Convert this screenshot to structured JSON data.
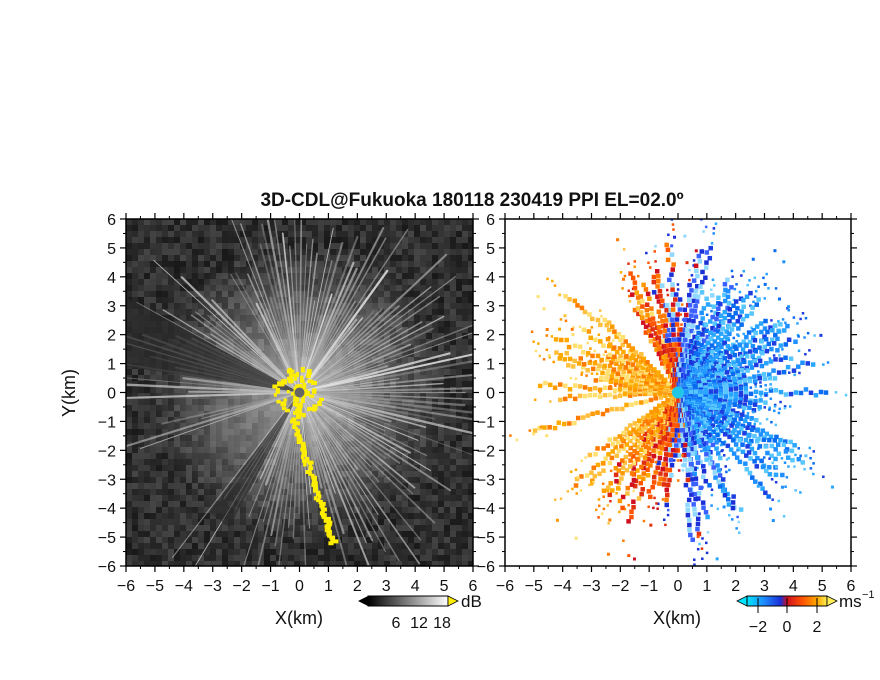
{
  "title": "3D-CDL@Fukuoka 180118 230419 PPI EL=02.0º",
  "colors": {
    "background_noise": "#2b2b2b",
    "sector_gray": "#e6e6e6",
    "yellow": "#ffee00",
    "radar_site": "#666666",
    "radar_site_right": "#22c7e8"
  },
  "chart_data": [
    {
      "type": "heatmap",
      "panel": "left",
      "xlabel": "X(km)",
      "ylabel": "Y(km)",
      "xlim": [
        -6,
        6
      ],
      "ylim": [
        -6,
        6
      ],
      "xticks": [
        -6,
        -5,
        -4,
        -3,
        -2,
        -1,
        0,
        1,
        2,
        3,
        4,
        5,
        6
      ],
      "yticks": [
        -6,
        -5,
        -4,
        -3,
        -2,
        -1,
        0,
        1,
        2,
        3,
        4,
        5,
        6
      ],
      "grid": false,
      "colorbar": {
        "unit": "dB",
        "ticks": [
          "6",
          "12",
          "18"
        ]
      }
    },
    {
      "type": "heatmap",
      "panel": "right",
      "xlabel": "X(km)",
      "ylabel": "",
      "xlim": [
        -6,
        6
      ],
      "ylim": [
        -6,
        6
      ],
      "xticks": [
        -6,
        -5,
        -4,
        -3,
        -2,
        -1,
        0,
        1,
        2,
        3,
        4,
        5,
        6
      ],
      "yticks": [
        -6,
        -5,
        -4,
        -3,
        -2,
        -1,
        0,
        1,
        2,
        3,
        4,
        5,
        6
      ],
      "grid": false,
      "colorbar": {
        "unit": "ms",
        "unit_exponent": "−1",
        "ticks": [
          "−2",
          "0",
          "2"
        ]
      }
    }
  ]
}
